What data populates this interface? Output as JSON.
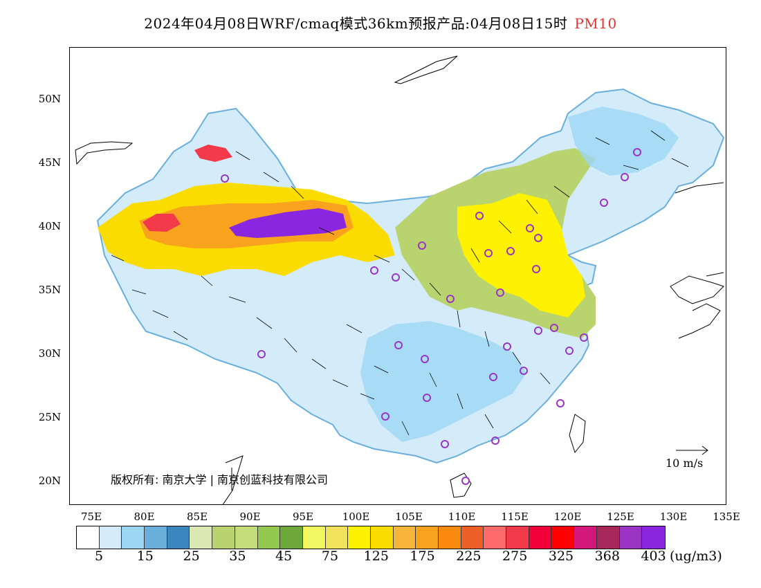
{
  "title": {
    "main": "2024年04月08日WRF/cmaq模式36km预报产品:04月08日15时",
    "pollutant": "PM10"
  },
  "axes": {
    "lat_labels": [
      "50N",
      "45N",
      "40N",
      "35N",
      "30N",
      "25N",
      "20N"
    ],
    "lon_labels": [
      "75E",
      "80E",
      "85E",
      "90E",
      "95E",
      "100E",
      "105E",
      "110E",
      "115E",
      "120E",
      "125E",
      "130E",
      "135E"
    ]
  },
  "copyright": "版权所有: 南京大学 | 南京创蓝科技有限公司",
  "wind_reference": "10 m/s",
  "legend": {
    "colors": [
      "#ffffff",
      "#d4ecfa",
      "#9bd7f5",
      "#6aafdc",
      "#3c86bf",
      "#dbe8b2",
      "#b9d46e",
      "#c2dd7a",
      "#93c94e",
      "#6ea83a",
      "#f1f760",
      "#f2e15a",
      "#fff200",
      "#fadc00",
      "#f7b43a",
      "#f9a21e",
      "#fb8a10",
      "#ef6028",
      "#fc6a6a",
      "#f23a4a",
      "#f3003a",
      "#ff0000",
      "#d2187a",
      "#a8285a",
      "#9a34c4",
      "#8a26e0"
    ],
    "ticks": [
      "5",
      "15",
      "25",
      "35",
      "45",
      "75",
      "125",
      "175",
      "225",
      "275",
      "325",
      "368",
      "403"
    ],
    "unit": "(ug/m3)"
  }
}
